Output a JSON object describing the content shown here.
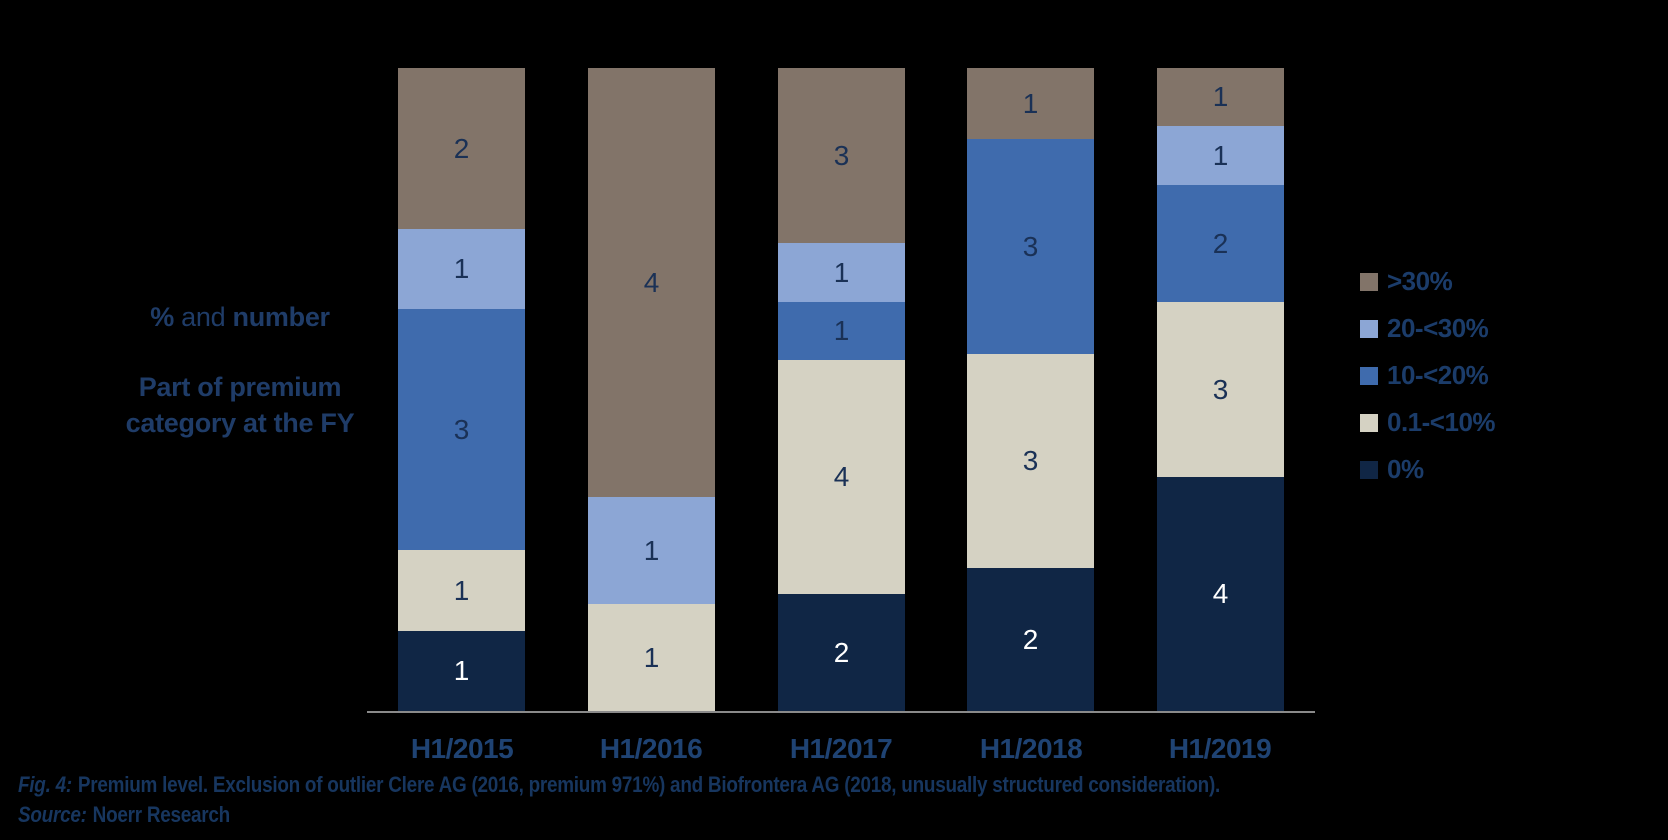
{
  "background_color": "#000000",
  "axis_annotation": {
    "percent": "%",
    "and": " and ",
    "number": "number",
    "line2": "Part of premium",
    "line3": "category at the FY"
  },
  "caption": {
    "fig_label": "Fig. 4:",
    "text": "Premium level. Exclusion of outlier Clere AG (2016, premium 971%) and Biofrontera AG (2018, unusually structured consideration).",
    "source_label": "Source:",
    "source_text": "Noerr Research"
  },
  "colors": {
    "background": "#000000",
    "axis_line": "#8A8A8A",
    "segment_label": "#1A3156",
    "segment_label_on_dark": "#FFFFFF",
    "x_axis_label": "#1F4373",
    "legend_text": "#1B3C6A",
    "annotation_text": "#1F3C68",
    "caption_text": "#17365F"
  },
  "chart_data": {
    "type": "bar",
    "variant": "100-percent-stacked-column",
    "title": "",
    "xlabel": "",
    "ylabel": "% and number — Part of premium category at the FY",
    "grid": false,
    "legend_position": "right",
    "categories": [
      "H1/2015",
      "H1/2016",
      "H1/2017",
      "H1/2018",
      "H1/2019"
    ],
    "series": [
      {
        "name": ">30%",
        "color": "#827469",
        "values": [
          2,
          4,
          3,
          1,
          1
        ]
      },
      {
        "name": "20-<30%",
        "color": "#8CA6D5",
        "values": [
          1,
          1,
          1,
          0,
          1
        ]
      },
      {
        "name": "10-<20%",
        "color": "#3F6BAD",
        "values": [
          3,
          0,
          1,
          3,
          2
        ]
      },
      {
        "name": "0.1-<10%",
        "color": "#D5D2C3",
        "values": [
          1,
          1,
          4,
          3,
          3
        ]
      },
      {
        "name": "0%",
        "color": "#102645",
        "values": [
          1,
          0,
          2,
          2,
          4
        ]
      }
    ],
    "column_totals": [
      8,
      6,
      11,
      9,
      11
    ],
    "value_labels": "company counts shown inside segments; segment heights are percent shares of each half-year total"
  }
}
